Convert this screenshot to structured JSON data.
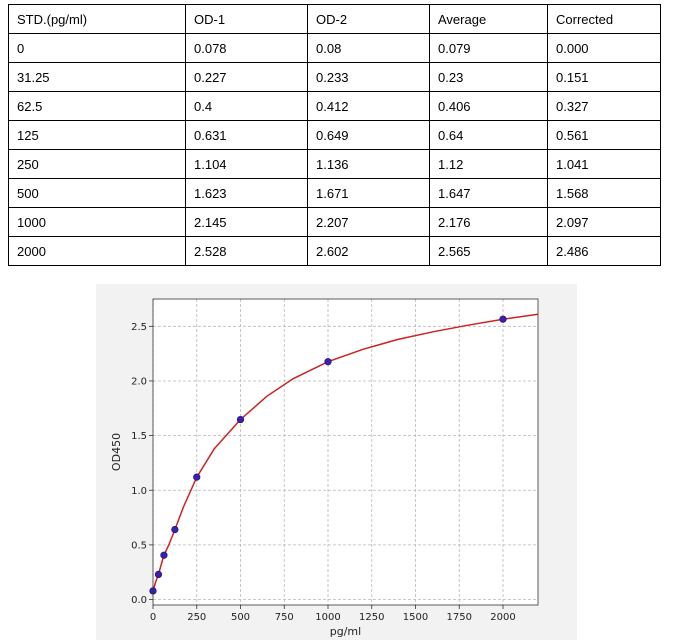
{
  "table": {
    "headers": [
      "STD.(pg/ml)",
      "OD-1",
      "OD-2",
      "Average",
      "Corrected"
    ],
    "rows": [
      [
        "0",
        "0.078",
        "0.08",
        "0.079",
        "0.000"
      ],
      [
        "31.25",
        "0.227",
        "0.233",
        "0.23",
        "0.151"
      ],
      [
        "62.5",
        "0.4",
        "0.412",
        "0.406",
        "0.327"
      ],
      [
        "125",
        "0.631",
        "0.649",
        "0.64",
        "0.561"
      ],
      [
        "250",
        "1.104",
        "1.136",
        "1.12",
        "1.041"
      ],
      [
        "500",
        "1.623",
        "1.671",
        "1.647",
        "1.568"
      ],
      [
        "1000",
        "2.145",
        "2.207",
        "2.176",
        "2.097"
      ],
      [
        "2000",
        "2.528",
        "2.602",
        "2.565",
        "2.486"
      ]
    ]
  },
  "chart_data": {
    "type": "scatter",
    "title": "",
    "xlabel": "pg/ml",
    "ylabel": "OD450",
    "xlim": [
      0,
      2200
    ],
    "ylim": [
      -0.05,
      2.75
    ],
    "x_ticks": [
      0,
      250,
      500,
      750,
      1000,
      1250,
      1500,
      1750,
      2000
    ],
    "y_ticks": [
      0.0,
      0.5,
      1.0,
      1.5,
      2.0,
      2.5
    ],
    "grid": true,
    "legend": "none",
    "series": [
      {
        "x": [
          0,
          31.25,
          62.5,
          125,
          250,
          500,
          1000,
          2000
        ],
        "y": [
          0.079,
          0.23,
          0.406,
          0.64,
          1.12,
          1.647,
          2.176,
          2.565
        ],
        "marker_color": "#3b1fb0"
      }
    ],
    "fit_curve": {
      "color": "#cc2222",
      "x": [
        0,
        15,
        31.25,
        45,
        62.5,
        90,
        125,
        175,
        250,
        350,
        500,
        650,
        800,
        1000,
        1200,
        1400,
        1600,
        1800,
        2000,
        2200
      ],
      "y": [
        0.079,
        0.16,
        0.23,
        0.31,
        0.406,
        0.5,
        0.64,
        0.85,
        1.12,
        1.38,
        1.647,
        1.86,
        2.02,
        2.176,
        2.29,
        2.38,
        2.45,
        2.51,
        2.565,
        2.61
      ]
    }
  },
  "colors": {
    "panel": "#f2f2f2",
    "axes_bg": "#ffffff",
    "curve": "#cc2222",
    "marker": "#3b1fb0"
  }
}
